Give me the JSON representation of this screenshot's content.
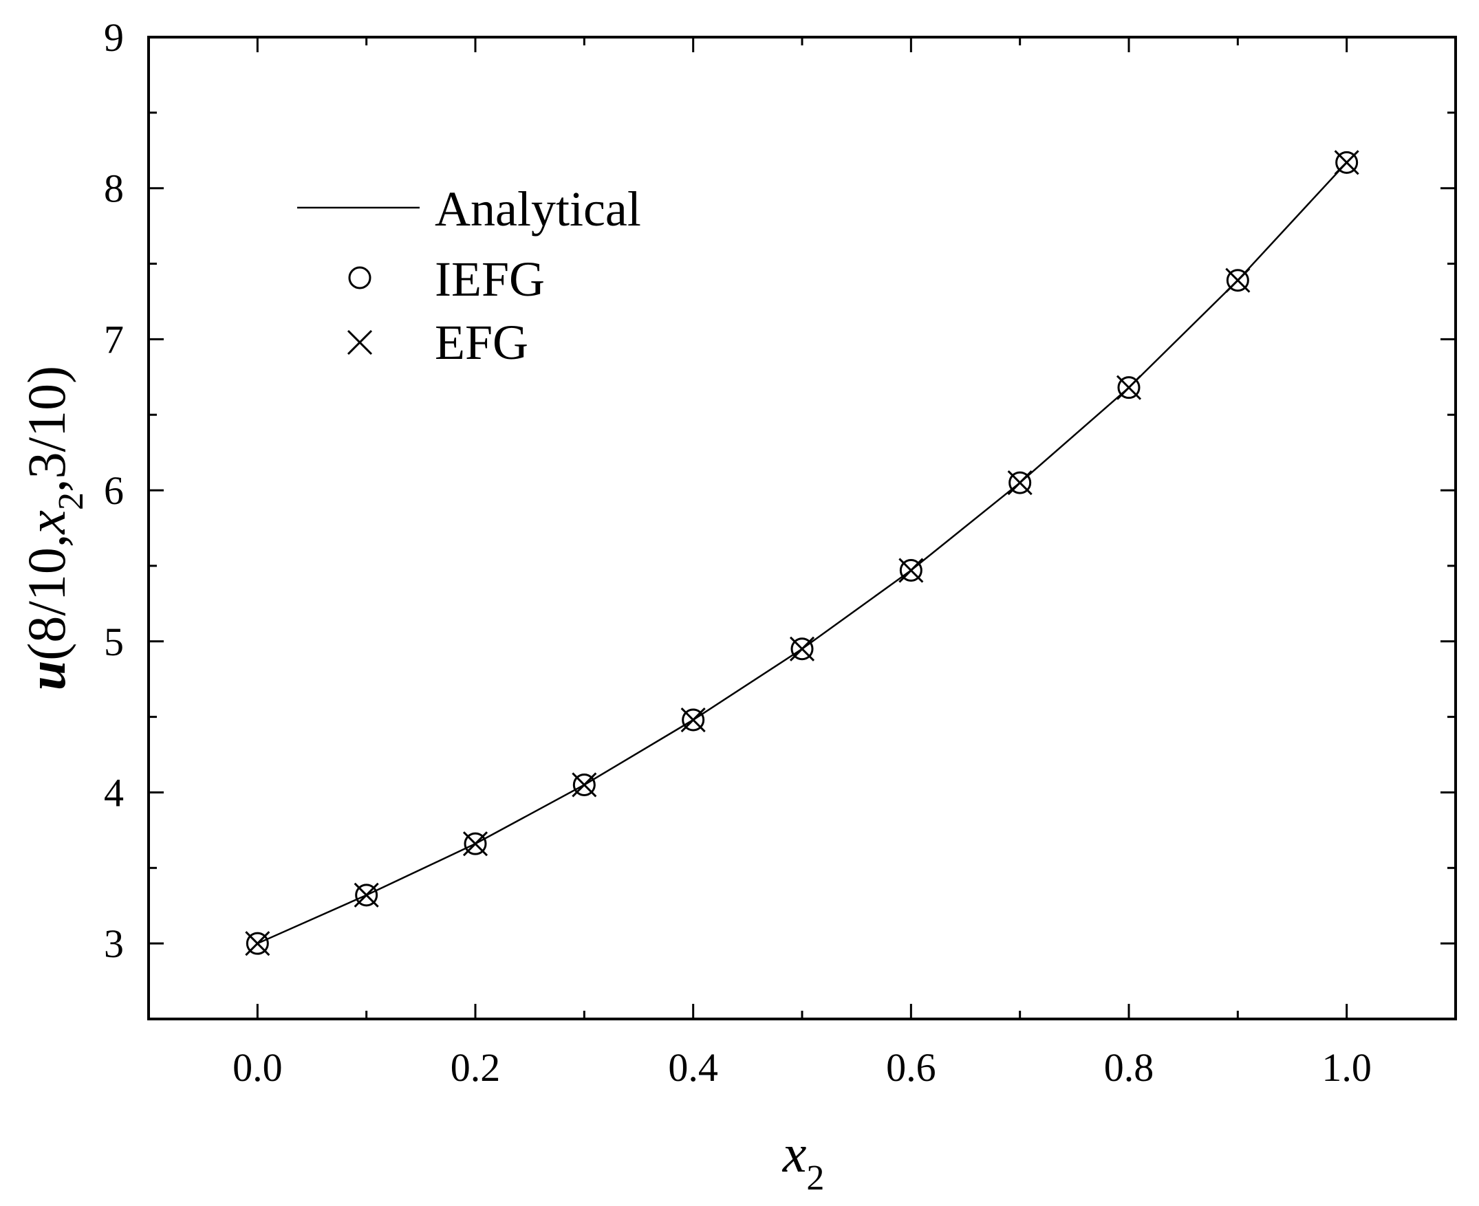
{
  "chart_data": {
    "type": "line",
    "title": "",
    "xlabel": {
      "base": "x",
      "sub": "2"
    },
    "ylabel": {
      "prefix": "u",
      "open": "(8/10,",
      "var": "x",
      "sub": "2",
      "close": ",3/10)"
    },
    "xlim": [
      -0.1,
      1.1
    ],
    "ylim": [
      2.5,
      9
    ],
    "xticks": [
      0.0,
      0.2,
      0.4,
      0.6,
      0.8,
      1.0
    ],
    "xtick_labels": [
      "0.0",
      "0.2",
      "0.4",
      "0.6",
      "0.8",
      "1.0"
    ],
    "yticks": [
      3,
      4,
      5,
      6,
      7,
      8,
      9
    ],
    "ytick_labels": [
      "3",
      "4",
      "5",
      "6",
      "7",
      "8",
      "9"
    ],
    "grid": false,
    "legend_position": "upper-left",
    "x": [
      0.0,
      0.1,
      0.2,
      0.3,
      0.4,
      0.5,
      0.6,
      0.7,
      0.8,
      0.9,
      1.0
    ],
    "series": [
      {
        "name": "Analytical",
        "style": "line",
        "values": [
          3.0,
          3.32,
          3.66,
          4.05,
          4.48,
          4.95,
          5.47,
          6.05,
          6.68,
          7.39,
          8.17
        ]
      },
      {
        "name": "IEFG",
        "style": "circle",
        "values": [
          3.0,
          3.32,
          3.66,
          4.05,
          4.48,
          4.95,
          5.47,
          6.05,
          6.68,
          7.39,
          8.17
        ]
      },
      {
        "name": "EFG",
        "style": "cross",
        "values": [
          3.0,
          3.32,
          3.66,
          4.05,
          4.48,
          4.95,
          5.47,
          6.05,
          6.68,
          7.39,
          8.17
        ]
      }
    ],
    "colors": {
      "line": "#000000",
      "background": "#ffffff"
    }
  }
}
